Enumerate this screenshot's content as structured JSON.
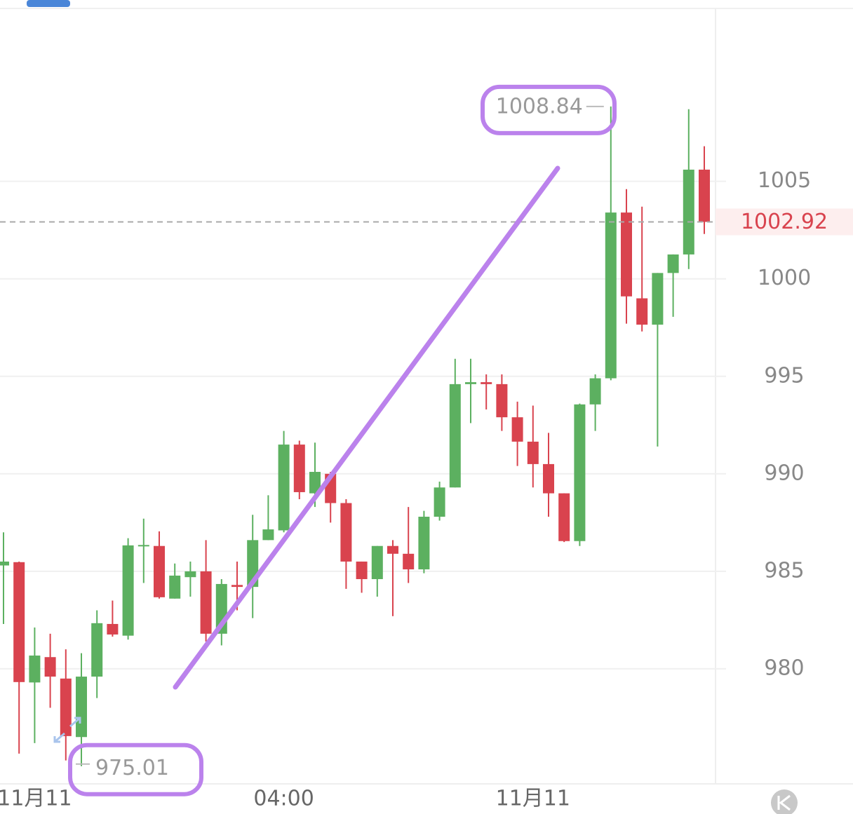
{
  "chart_data": {
    "type": "candlestick",
    "categories": [
      null,
      null,
      "11月11",
      null,
      null,
      null,
      null,
      null,
      null,
      null,
      null,
      null,
      null,
      null,
      null,
      null,
      null,
      null,
      "04:00",
      null,
      null,
      null,
      null,
      null,
      null,
      null,
      null,
      null,
      null,
      null,
      null,
      null,
      null,
      null,
      "11月11",
      null,
      null,
      null,
      null,
      null,
      null,
      null,
      null,
      null,
      null,
      null
    ],
    "open": [
      985.3,
      985.47,
      979.3,
      980.6,
      979.5,
      976.5,
      979.6,
      982.3,
      981.7,
      986.3,
      986.3,
      983.6,
      984.7,
      985.0,
      981.8,
      984.3,
      984.2,
      986.6,
      987.1,
      991.5,
      989.0,
      990.0,
      988.5,
      985.5,
      984.6,
      986.3,
      985.9,
      985.1,
      987.8,
      989.3,
      994.6,
      994.7,
      994.6,
      992.9,
      991.65,
      990.5,
      989.0,
      986.55,
      993.56,
      994.9,
      1003.4,
      999.0,
      997.65,
      1000.3,
      1001.25,
      1005.6
    ],
    "high": [
      987.0,
      985.5,
      982.12,
      981.8,
      981.0,
      980.8,
      983.0,
      983.5,
      986.7,
      987.7,
      987.05,
      985.4,
      985.5,
      986.6,
      984.6,
      985.5,
      987.9,
      988.9,
      992.2,
      991.7,
      991.6,
      990.1,
      988.7,
      985.5,
      986.3,
      986.6,
      988.3,
      988.1,
      989.6,
      995.9,
      995.9,
      995.1,
      995.1,
      993.7,
      993.5,
      992.1,
      989.0,
      993.6,
      995.1,
      1008.84,
      1004.6,
      1003.7,
      1000.3,
      1001.25,
      1008.7,
      1006.8
    ],
    "low": [
      982.3,
      975.65,
      976.19,
      978.0,
      975.3,
      975.01,
      978.5,
      981.65,
      981.5,
      984.4,
      983.6,
      983.6,
      983.7,
      981.4,
      981.2,
      983.0,
      982.6,
      986.6,
      987.0,
      988.7,
      988.3,
      987.5,
      984.1,
      983.9,
      983.7,
      982.7,
      984.4,
      984.9,
      987.6,
      989.3,
      992.6,
      993.3,
      992.2,
      990.4,
      989.3,
      987.8,
      986.5,
      986.3,
      992.2,
      994.8,
      997.7,
      997.3,
      991.4,
      998.05,
      1000.5,
      1002.3
    ],
    "close": [
      985.5,
      979.32,
      980.68,
      979.6,
      976.55,
      979.6,
      982.34,
      981.76,
      986.33,
      986.35,
      983.67,
      984.78,
      985.0,
      981.8,
      984.35,
      984.2,
      986.6,
      987.15,
      991.5,
      989.06,
      990.1,
      988.5,
      985.5,
      984.6,
      986.3,
      985.9,
      985.1,
      987.8,
      989.3,
      994.6,
      994.7,
      994.6,
      992.9,
      991.65,
      990.5,
      989.0,
      986.55,
      993.56,
      994.9,
      1003.4,
      999.1,
      997.65,
      1000.3,
      1001.25,
      1005.6,
      1002.92
    ],
    "up_color": "#5cb060",
    "down_color": "#d9434e",
    "ylim": [
      974.1,
      1014.3
    ],
    "yticks": [
      980,
      985,
      990,
      995,
      1000,
      1005
    ],
    "grid": true,
    "last_price": 1002.92,
    "high_marker": 1008.84,
    "low_marker": 975.01
  }
}
